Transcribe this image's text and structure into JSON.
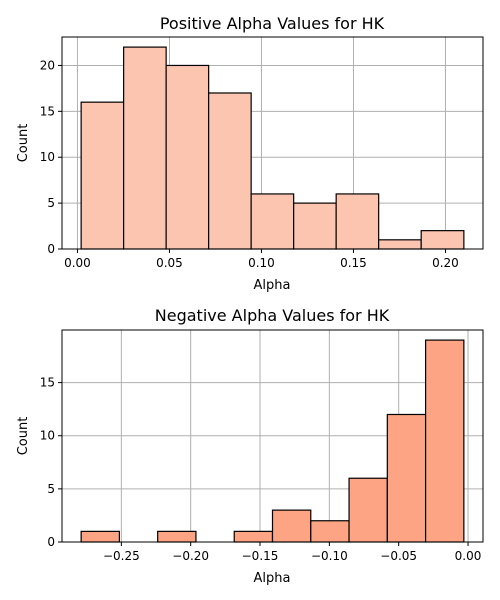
{
  "chart_data": [
    {
      "type": "bar",
      "title": "Positive Alpha Values for HK",
      "xlabel": "Alpha",
      "ylabel": "Count",
      "bin_edges": [
        0.002,
        0.0251,
        0.0482,
        0.0713,
        0.0944,
        0.1175,
        0.1406,
        0.1637,
        0.1868,
        0.21
      ],
      "values": [
        16,
        22,
        20,
        17,
        6,
        5,
        6,
        1,
        2
      ],
      "xlim": [
        -0.0084,
        0.2204
      ],
      "ylim": [
        0,
        23.1
      ],
      "xticks": [
        0.0,
        0.05,
        0.1,
        0.15,
        0.2
      ],
      "xtick_labels": [
        "0.00",
        "0.05",
        "0.10",
        "0.15",
        "0.20"
      ],
      "yticks": [
        0,
        5,
        10,
        15,
        20
      ],
      "ytick_labels": [
        "0",
        "5",
        "10",
        "15",
        "20"
      ],
      "grid": true,
      "bar_color": "#fcc5b0",
      "edge_color": "#000000"
    },
    {
      "type": "bar",
      "title": "Negative Alpha Values for HK",
      "xlabel": "Alpha",
      "ylabel": "Count",
      "bin_edges": [
        -0.279,
        -0.2514,
        -0.2238,
        -0.1962,
        -0.1686,
        -0.141,
        -0.1134,
        -0.0858,
        -0.0582,
        -0.0306,
        -0.003
      ],
      "values": [
        1,
        0,
        1,
        0,
        1,
        3,
        2,
        6,
        12,
        19
      ],
      "xlim": [
        -0.2928,
        0.0108
      ],
      "ylim": [
        0,
        19.95
      ],
      "xticks": [
        -0.25,
        -0.2,
        -0.15,
        -0.1,
        -0.05,
        0.0
      ],
      "xtick_labels": [
        "−0.25",
        "−0.20",
        "−0.15",
        "−0.10",
        "−0.05",
        "0.00"
      ],
      "yticks": [
        0,
        5,
        10,
        15
      ],
      "ytick_labels": [
        "0",
        "5",
        "10",
        "15"
      ],
      "grid": true,
      "bar_color": "#fca483",
      "edge_color": "#000000"
    }
  ]
}
